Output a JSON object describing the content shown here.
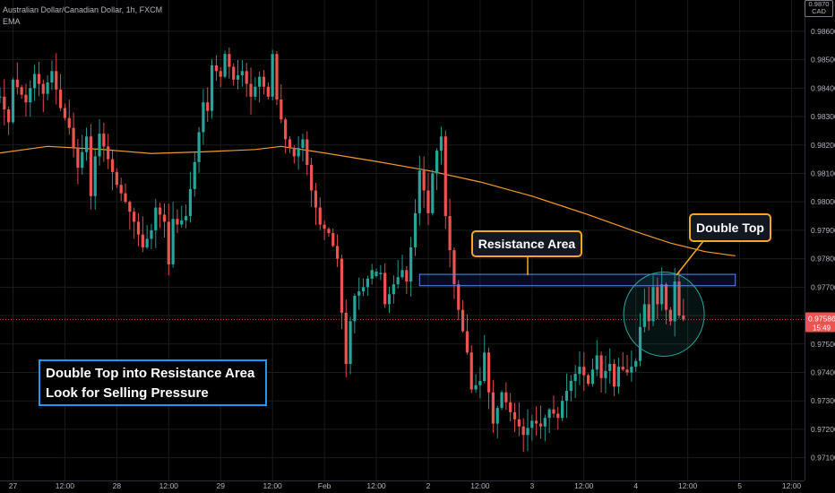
{
  "header": {
    "title": "Australian Dollar/Canadian Dollar, 1h, FXCM",
    "indicator": "EMA",
    "currency": "CAD",
    "currency_top": "0.9870"
  },
  "annotations": {
    "resistance_label": "Resistance Area",
    "double_top_label": "Double Top",
    "note_line1": "Double Top into Resistance Area",
    "note_line2": "Look for Selling Pressure"
  },
  "price_badge": {
    "price": "0.97586",
    "timer": "15:49"
  },
  "colors": {
    "up": "#26a69a",
    "down": "#ef5350",
    "ema": "#f29b2c",
    "zone": "#2962ff",
    "callout_border": "#f5a623",
    "note_border": "#2196f3",
    "grid": "#1b1b1b",
    "price_line": "#ef5350",
    "circle": "#26a69a"
  },
  "chart_data": {
    "type": "candlestick",
    "title": "Australian Dollar/Canadian Dollar, 1h, FXCM",
    "ylim": [
      0.9702,
      0.9871
    ],
    "y_ticks": [
      "0.98600",
      "0.98500",
      "0.98400",
      "0.98300",
      "0.98200",
      "0.98100",
      "0.98000",
      "0.97900",
      "0.97800",
      "0.97700",
      "0.97600",
      "0.97500",
      "0.97400",
      "0.97300",
      "0.97200",
      "0.97100"
    ],
    "x_ticks": [
      "27",
      "12:00",
      "28",
      "12:00",
      "29",
      "12:00",
      "Feb",
      "12:00",
      "2",
      "12:00",
      "3",
      "12:00",
      "4",
      "12:00",
      "5",
      "12:00"
    ],
    "x_tick_hours": [
      0,
      12,
      24,
      36,
      48,
      60,
      72,
      84,
      96,
      108,
      120,
      132,
      144,
      156,
      168,
      180
    ],
    "x_hour_range": [
      -3,
      183
    ],
    "last_price": 0.97586,
    "resistance_zone": {
      "from_hour": 94,
      "to_hour": 167,
      "low": 0.97705,
      "high": 0.97745
    },
    "double_top_region": {
      "center_hour": 150.5,
      "center_price": 0.97605
    },
    "ema": [
      [
        -3,
        0.98172
      ],
      [
        8,
        0.98195
      ],
      [
        20,
        0.98185
      ],
      [
        32,
        0.9817
      ],
      [
        44,
        0.98176
      ],
      [
        56,
        0.98184
      ],
      [
        62,
        0.98195
      ],
      [
        72,
        0.98172
      ],
      [
        84,
        0.98142
      ],
      [
        96,
        0.9811
      ],
      [
        108,
        0.9807
      ],
      [
        120,
        0.9802
      ],
      [
        132,
        0.9796
      ],
      [
        144,
        0.97895
      ],
      [
        152,
        0.97855
      ],
      [
        160,
        0.97825
      ],
      [
        167,
        0.9781
      ]
    ],
    "path": [
      [
        -3,
        0.9837
      ],
      [
        -1,
        0.9828
      ],
      [
        0,
        0.9843
      ],
      [
        3,
        0.9835
      ],
      [
        5,
        0.9845
      ],
      [
        7,
        0.9838
      ],
      [
        9,
        0.9846
      ],
      [
        11,
        0.9833
      ],
      [
        13,
        0.9826
      ],
      [
        15,
        0.9812
      ],
      [
        17,
        0.9823
      ],
      [
        18,
        0.9802
      ],
      [
        19,
        0.9816
      ],
      [
        20,
        0.9824
      ],
      [
        22,
        0.9815
      ],
      [
        24,
        0.9806
      ],
      [
        26,
        0.98
      ],
      [
        28,
        0.9793
      ],
      [
        30,
        0.9784
      ],
      [
        32,
        0.979
      ],
      [
        33,
        0.9798
      ],
      [
        35,
        0.9793
      ],
      [
        36,
        0.9778
      ],
      [
        37,
        0.9794
      ],
      [
        38,
        0.9792
      ],
      [
        40,
        0.9795
      ],
      [
        42,
        0.9814
      ],
      [
        44,
        0.9835
      ],
      [
        45,
        0.9832
      ],
      [
        46,
        0.9848
      ],
      [
        48,
        0.9844
      ],
      [
        49,
        0.9852
      ],
      [
        51,
        0.9843
      ],
      [
        53,
        0.9846
      ],
      [
        55,
        0.9837
      ],
      [
        57,
        0.9844
      ],
      [
        59,
        0.9837
      ],
      [
        60,
        0.9852
      ],
      [
        61,
        0.9836
      ],
      [
        63,
        0.9822
      ],
      [
        65,
        0.9816
      ],
      [
        67,
        0.9822
      ],
      [
        69,
        0.9804
      ],
      [
        71,
        0.9792
      ],
      [
        73,
        0.9789
      ],
      [
        75,
        0.978
      ],
      [
        76,
        0.9761
      ],
      [
        77,
        0.9743
      ],
      [
        78,
        0.9758
      ],
      [
        79,
        0.9767
      ],
      [
        81,
        0.977
      ],
      [
        83,
        0.9776
      ],
      [
        85,
        0.9775
      ],
      [
        86,
        0.9764
      ],
      [
        88,
        0.9771
      ],
      [
        90,
        0.9776
      ],
      [
        91,
        0.9772
      ],
      [
        93,
        0.9796
      ],
      [
        94,
        0.9811
      ],
      [
        95,
        0.9804
      ],
      [
        96,
        0.9796
      ],
      [
        97,
        0.981
      ],
      [
        98,
        0.9818
      ],
      [
        99,
        0.9823
      ],
      [
        100,
        0.9795
      ],
      [
        101,
        0.9783
      ],
      [
        102,
        0.9771
      ],
      [
        103,
        0.9762
      ],
      [
        105,
        0.9747
      ],
      [
        106,
        0.9734
      ],
      [
        108,
        0.9737
      ],
      [
        109,
        0.9747
      ],
      [
        110,
        0.9733
      ],
      [
        111,
        0.9722
      ],
      [
        113,
        0.9733
      ],
      [
        115,
        0.9726
      ],
      [
        117,
        0.9721
      ],
      [
        118,
        0.9718
      ],
      [
        120,
        0.9723
      ],
      [
        122,
        0.9721
      ],
      [
        124,
        0.9727
      ],
      [
        126,
        0.9724
      ],
      [
        127,
        0.973
      ],
      [
        129,
        0.9737
      ],
      [
        131,
        0.9742
      ],
      [
        133,
        0.9736
      ],
      [
        135,
        0.9746
      ],
      [
        136,
        0.9738
      ],
      [
        138,
        0.9743
      ],
      [
        139,
        0.9735
      ],
      [
        140,
        0.9742
      ],
      [
        142,
        0.974
      ],
      [
        144,
        0.9744
      ],
      [
        145,
        0.9756
      ],
      [
        146,
        0.9764
      ],
      [
        147,
        0.9758
      ],
      [
        148,
        0.977
      ],
      [
        149,
        0.9764
      ],
      [
        150,
        0.9771
      ],
      [
        151,
        0.9762
      ],
      [
        152,
        0.9758
      ],
      [
        153,
        0.9772
      ],
      [
        154,
        0.976
      ],
      [
        155,
        0.97586
      ]
    ]
  }
}
